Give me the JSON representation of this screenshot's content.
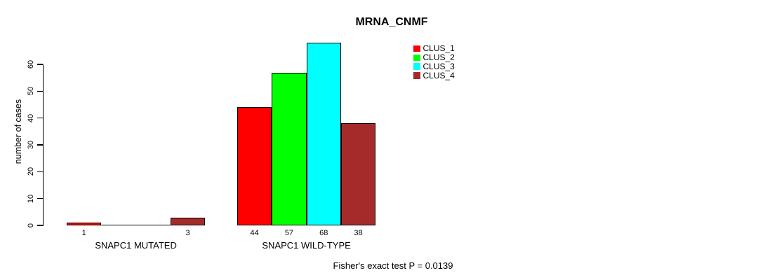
{
  "chart_data": {
    "type": "bar",
    "title": "MRNA_CNMF",
    "ylabel": "number of cases",
    "xlabel": "",
    "footer": "Fisher's exact test P = 0.0139",
    "groups": [
      "SNAPC1 MUTATED",
      "SNAPC1 WILD-TYPE"
    ],
    "series": [
      {
        "name": "CLUS_1",
        "color": "#FF0000",
        "values": [
          1,
          44
        ]
      },
      {
        "name": "CLUS_2",
        "color": "#00FF00",
        "values": [
          0,
          57
        ]
      },
      {
        "name": "CLUS_3",
        "color": "#00FFFF",
        "values": [
          0,
          68
        ]
      },
      {
        "name": "CLUS_4",
        "color": "#A52A2A",
        "values": [
          3,
          38
        ]
      }
    ],
    "yticks": [
      0,
      10,
      20,
      30,
      40,
      50,
      60
    ],
    "ylim": [
      0,
      68
    ],
    "bar_value_labels": {
      "SNAPC1 MUTATED": [
        "1",
        "3"
      ],
      "SNAPC1 WILD-TYPE": [
        "44",
        "57",
        "68",
        "38"
      ]
    },
    "zero_bars_drawn_as_lines": true,
    "grid": false,
    "legend_position": "top-right",
    "background_color": "#FFFFFF",
    "axis_color": "#000000"
  }
}
